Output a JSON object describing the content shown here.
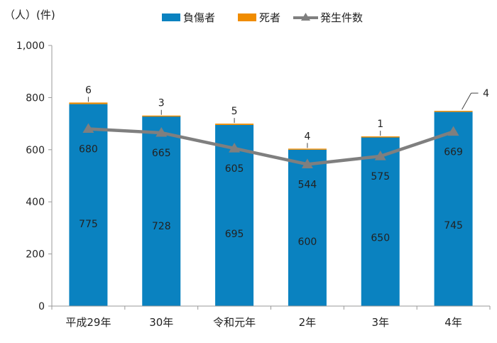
{
  "chart_data": {
    "type": "bar",
    "stacked": true,
    "unit_label": "（人）(件)",
    "categories": [
      "平成29年",
      "30年",
      "令和元年",
      "2年",
      "3年",
      "4年"
    ],
    "series": [
      {
        "name": "負傷者",
        "kind": "bar",
        "color": "#0a82c0",
        "values": [
          775,
          728,
          695,
          600,
          650,
          745
        ],
        "labels": [
          "775",
          "728",
          "695",
          "600",
          "650",
          "745"
        ]
      },
      {
        "name": "死者",
        "kind": "bar",
        "color": "#f08c00",
        "values": [
          6,
          3,
          5,
          4,
          1,
          4
        ],
        "labels": [
          "6",
          "3",
          "5",
          "4",
          "1",
          "4"
        ]
      },
      {
        "name": "発生件数",
        "kind": "line",
        "color": "#7f7f7f",
        "values": [
          680,
          665,
          605,
          544,
          575,
          669
        ],
        "labels": [
          "680",
          "665",
          "605",
          "544",
          "575",
          "669"
        ]
      }
    ],
    "y_ticks": [
      "0",
      "200",
      "400",
      "600",
      "800",
      "1,000"
    ],
    "ylim": [
      0,
      1000
    ],
    "legend_position": "top"
  }
}
